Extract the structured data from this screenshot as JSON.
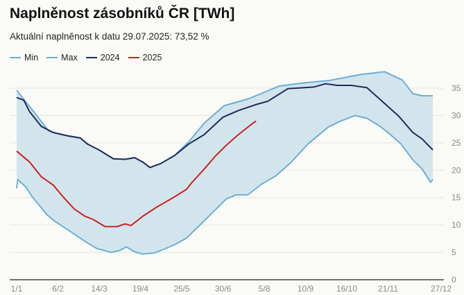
{
  "chart_data": {
    "type": "line",
    "title": "Naplněnost zásobníků ČR [TWh]",
    "subtitle": "Aktuální naplněnost k datu 29.07.2025: 73,52 %",
    "xlabel": "",
    "ylabel": "TWh",
    "ylim": [
      0,
      35
    ],
    "yticks": [
      "0",
      "5",
      "10",
      "15",
      "20",
      "25",
      "30",
      "35"
    ],
    "xtick_labels": [
      "1/1",
      "6/2",
      "14/3",
      "19/4",
      "25/5",
      "30/6",
      "5/8",
      "10/9",
      "16/10",
      "21/11",
      "27/12"
    ],
    "xtick_days": [
      0,
      35,
      70,
      105,
      140,
      175,
      210,
      245,
      280,
      315,
      360
    ],
    "grid": true,
    "legend_position": "top-left",
    "colors": {
      "min": "#6aaed6",
      "max": "#6aaed6",
      "2024": "#1e2a5a",
      "2025": "#cc2020",
      "band": "#d3e5ec"
    },
    "series": [
      {
        "name": "Min",
        "key": "min",
        "x": [
          0,
          1,
          8,
          13,
          26,
          33,
          45,
          58,
          68,
          80,
          87,
          93,
          100,
          107,
          117,
          124,
          134,
          144,
          154,
          164,
          178,
          186,
          196,
          208,
          220,
          233,
          247,
          265,
          275,
          287,
          297,
          307,
          316,
          326,
          336,
          344,
          351,
          353
        ],
        "values": [
          16.7,
          18.3,
          16.9,
          15.2,
          11.8,
          10.6,
          8.9,
          7.0,
          5.7,
          5.0,
          5.3,
          6.0,
          5.1,
          4.7,
          4.9,
          5.5,
          6.4,
          7.6,
          9.7,
          11.8,
          14.8,
          15.5,
          15.5,
          17.5,
          19.0,
          21.5,
          24.8,
          28.0,
          29.0,
          30.0,
          29.5,
          28.2,
          26.7,
          24.8,
          21.9,
          20.2,
          17.8,
          18.3
        ]
      },
      {
        "name": "Max",
        "key": "max",
        "x": [
          0,
          13,
          27,
          31,
          43,
          54,
          60,
          70,
          82,
          92,
          100,
          107,
          113,
          122,
          134,
          146,
          159,
          176,
          196,
          223,
          245,
          265,
          292,
          312,
          327,
          336,
          344,
          353
        ],
        "values": [
          34.6,
          31.1,
          27.2,
          26.9,
          26.3,
          25.9,
          24.8,
          23.7,
          22.1,
          22.0,
          22.3,
          21.5,
          20.5,
          21.2,
          22.7,
          25.2,
          28.6,
          31.8,
          33.0,
          35.4,
          36.0,
          36.4,
          37.5,
          38.0,
          36.5,
          34.0,
          33.6,
          33.6
        ]
      },
      {
        "name": "2024",
        "key": "2024",
        "x": [
          0,
          6,
          11,
          21,
          31,
          43,
          54,
          60,
          70,
          82,
          92,
          100,
          107,
          113,
          122,
          134,
          146,
          159,
          175,
          188,
          203,
          213,
          230,
          252,
          262,
          272,
          284,
          297,
          309,
          324,
          336,
          344,
          353
        ],
        "values": [
          33.3,
          32.8,
          30.7,
          28.0,
          26.9,
          26.3,
          25.9,
          24.8,
          23.7,
          22.1,
          22.0,
          22.3,
          21.5,
          20.5,
          21.2,
          22.7,
          24.8,
          26.5,
          29.7,
          30.9,
          32.0,
          32.6,
          34.9,
          35.2,
          35.8,
          35.5,
          35.5,
          35.1,
          32.8,
          29.9,
          26.9,
          25.7,
          23.7
        ]
      },
      {
        "name": "2025",
        "key": "2025",
        "x": [
          0,
          11,
          21,
          31,
          40,
          49,
          58,
          65,
          75,
          85,
          92,
          97,
          107,
          119,
          132,
          144,
          148,
          159,
          169,
          178,
          188,
          198,
          203
        ],
        "values": [
          23.5,
          21.5,
          18.8,
          17.3,
          15.0,
          12.9,
          11.6,
          11.0,
          9.7,
          9.7,
          10.2,
          9.9,
          11.6,
          13.3,
          14.9,
          16.5,
          17.6,
          20.2,
          22.7,
          24.6,
          26.5,
          28.2,
          29.0
        ]
      }
    ]
  }
}
